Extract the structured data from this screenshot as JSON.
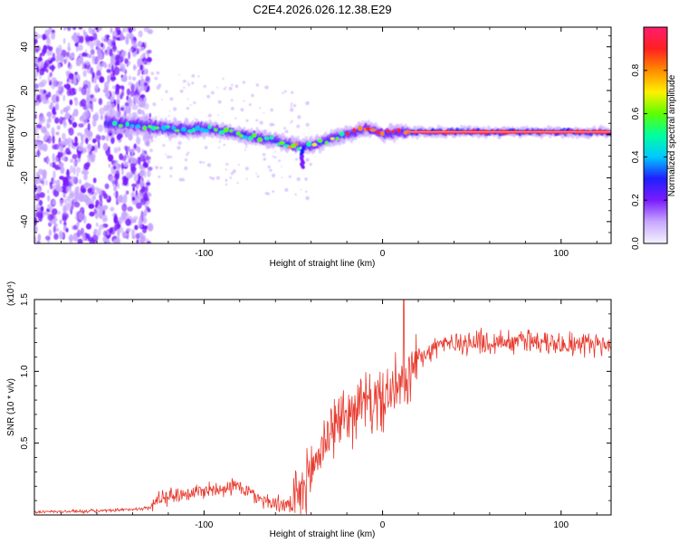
{
  "figure": {
    "title": "C2E4.2026.026.12.38.E29"
  },
  "chart_data": [
    {
      "type": "heatmap",
      "xlabel": "Height of straight line (km)",
      "ylabel": "Frequency (Hz)",
      "xlim": [
        -195,
        128
      ],
      "ylim": [
        -50,
        49
      ],
      "xticks": [
        -100,
        0,
        100
      ],
      "yticks": [
        -40,
        -20,
        0,
        20,
        40
      ],
      "colorbar": {
        "label": "Normalized spectral amplitude",
        "range": [
          0,
          1
        ],
        "ticks": [
          "0.0",
          "0.2",
          "0.4",
          "0.6",
          "0.8"
        ],
        "colors": [
          "#f4f2ff",
          "#c8a8ff",
          "#7a1cff",
          "#1f1fff",
          "#00c8ff",
          "#00ffa0",
          "#5cff00",
          "#fff000",
          "#ff8c00",
          "#ff2020",
          "#ff1e6e"
        ]
      },
      "ridge": {
        "x": [
          -150,
          -140,
          -130,
          -120,
          -110,
          -100,
          -90,
          -80,
          -70,
          -60,
          -50,
          -45,
          -40,
          -35,
          -30,
          -25,
          -20,
          -15,
          -10,
          -5,
          0,
          5,
          10,
          20,
          40,
          60,
          80,
          100,
          128
        ],
        "y": [
          5,
          4.5,
          3.5,
          2.5,
          2,
          2.5,
          1.5,
          0,
          -1.5,
          -3,
          -5,
          -6,
          -5,
          -4,
          -2.5,
          -1,
          0,
          1,
          2.5,
          2,
          0,
          0.5,
          1,
          1,
          1,
          1,
          1,
          1,
          1
        ]
      },
      "noise_region_x": [
        -195,
        -130
      ]
    },
    {
      "type": "line",
      "xlabel": "Height of straight line (km)",
      "ylabel": "SNR (10 * v/v)",
      "scale_label": "(x10⁴)",
      "xlim": [
        -195,
        128
      ],
      "ylim": [
        0,
        1.5
      ],
      "xticks": [
        -100,
        0,
        100
      ],
      "yticks": [
        0.5,
        1.0,
        1.5
      ],
      "ytick_labels": [
        "0.5",
        "1.0",
        "1.5"
      ],
      "color": "#e83a2e",
      "envelope": {
        "x": [
          -195,
          -150,
          -130,
          -125,
          -115,
          -100,
          -90,
          -80,
          -70,
          -60,
          -50,
          -45,
          -40,
          -35,
          -30,
          -25,
          -20,
          -15,
          -10,
          -5,
          0,
          5,
          10,
          15,
          20,
          30,
          40,
          60,
          80,
          100,
          128
        ],
        "y": [
          0.02,
          0.03,
          0.05,
          0.12,
          0.14,
          0.17,
          0.19,
          0.2,
          0.12,
          0.08,
          0.06,
          0.15,
          0.3,
          0.45,
          0.58,
          0.65,
          0.7,
          0.75,
          0.78,
          0.78,
          0.8,
          0.85,
          0.9,
          1.0,
          1.1,
          1.18,
          1.2,
          1.2,
          1.22,
          1.2,
          1.18
        ]
      },
      "spike": {
        "x": 12,
        "y": 1.52
      }
    }
  ]
}
